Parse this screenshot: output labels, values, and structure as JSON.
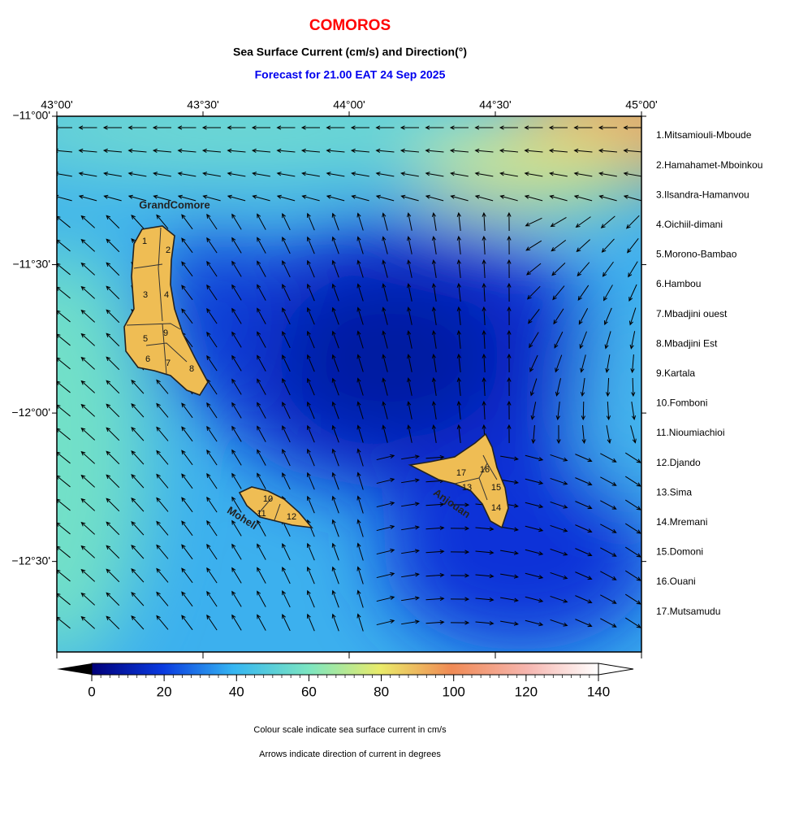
{
  "header": {
    "title": "COMOROS",
    "subtitle": "Sea Surface Current (cm/s) and Direction(°)",
    "forecast": "Forecast for  21.00 EAT 24 Sep 2025"
  },
  "map": {
    "xlim": [
      43,
      45
    ],
    "ylim": [
      -12.805,
      -11
    ],
    "xticks": [
      {
        "value": 43,
        "label": "43°00'"
      },
      {
        "value": 43.5,
        "label": "43°30'"
      },
      {
        "value": 44,
        "label": "44°00'"
      },
      {
        "value": 44.5,
        "label": "44°30'"
      },
      {
        "value": 45,
        "label": "45°00'"
      }
    ],
    "yticks": [
      {
        "value": -11,
        "label": "−11°00'"
      },
      {
        "value": -11.5,
        "label": "−11°30'"
      },
      {
        "value": -12,
        "label": "−12°00'"
      },
      {
        "value": -12.5,
        "label": "−12°30'"
      }
    ],
    "islands": [
      "GrandComore",
      "Moheli",
      "Anjouan"
    ],
    "districts": [
      "1",
      "2",
      "3",
      "4",
      "5",
      "6",
      "7",
      "8",
      "9",
      "10",
      "11",
      "12",
      "13",
      "14",
      "15",
      "16",
      "17"
    ]
  },
  "regions": [
    "1.Mitsamiouli-Mboude",
    "2.Hamahamet-Mboinkou",
    "3.Ilsandra-Hamanvou",
    "4.Oichiil-dimani",
    "5.Morono-Bambao",
    "6.Hambou",
    "7.Mbadjini ouest",
    "8.Mbadjini Est",
    "9.Kartala",
    "10.Fomboni",
    "11.Nioumiachioi",
    "12.Djando",
    "13.Sima",
    "14.Mremani",
    "15.Domoni",
    "16.Ouani",
    "17.Mutsamudu"
  ],
  "colorbar": {
    "range": [
      0,
      140
    ],
    "ticks": [
      0,
      20,
      40,
      60,
      80,
      100,
      120,
      140
    ]
  },
  "notes": [
    "Colour scale indicate sea surface current in cm/s",
    "Arrows indicate direction of current in degrees"
  ]
}
